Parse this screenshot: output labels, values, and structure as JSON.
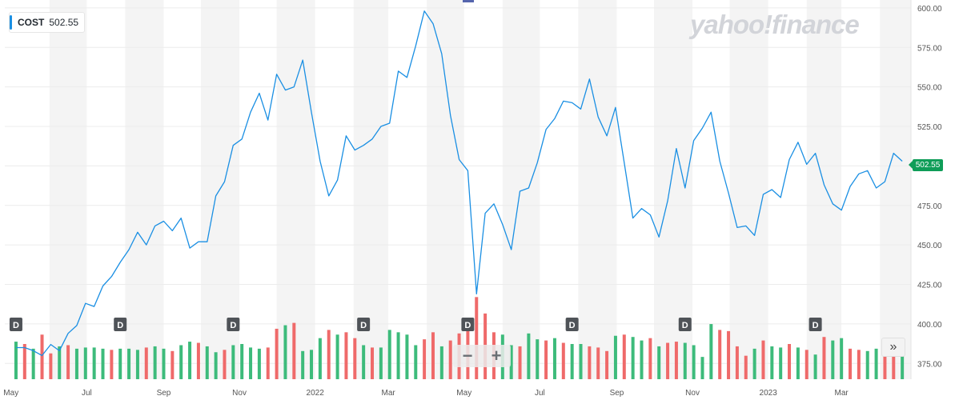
{
  "legend": {
    "symbol": "COST",
    "value": "502.55"
  },
  "brand": "yahoo!finance",
  "current_price": "502.55",
  "zoom": {
    "minus": "−",
    "plus": "+"
  },
  "nav_label": "»",
  "dividend_marker": "D",
  "colors": {
    "line": "#1a8fe3",
    "up": "#3dbb7b",
    "down": "#ef6a6a",
    "current_tag": "#0f9d58",
    "band": "#f4f4f4"
  },
  "chart_data": {
    "type": "line",
    "title": "",
    "xlabel": "",
    "ylabel": "",
    "ylim": [
      365,
      605
    ],
    "y_ticks": [
      375,
      400,
      425,
      450,
      475,
      500,
      525,
      550,
      575,
      600
    ],
    "y_tick_labels": [
      "375.00",
      "400.00",
      "425.00",
      "450.00",
      "475.00",
      "500.00",
      "525.00",
      "550.00",
      "575.00",
      "600.00"
    ],
    "x_tick_labels": [
      "May",
      "Jul",
      "Sep",
      "Nov",
      "2022",
      "Mar",
      "May",
      "Jul",
      "Sep",
      "Nov",
      "2023",
      "Mar"
    ],
    "grid": true,
    "series": [
      {
        "name": "COST",
        "x": [
          "2021-05-03",
          "2021-05-10",
          "2021-05-17",
          "2021-05-24",
          "2021-05-31",
          "2021-06-07",
          "2021-06-14",
          "2021-06-21",
          "2021-06-28",
          "2021-07-05",
          "2021-07-12",
          "2021-07-19",
          "2021-07-26",
          "2021-08-02",
          "2021-08-09",
          "2021-08-16",
          "2021-08-23",
          "2021-08-30",
          "2021-09-06",
          "2021-09-13",
          "2021-09-20",
          "2021-09-27",
          "2021-10-04",
          "2021-10-11",
          "2021-10-18",
          "2021-10-25",
          "2021-11-01",
          "2021-11-08",
          "2021-11-15",
          "2021-11-22",
          "2021-11-29",
          "2021-12-06",
          "2021-12-13",
          "2021-12-20",
          "2021-12-27",
          "2022-01-03",
          "2022-01-10",
          "2022-01-17",
          "2022-01-24",
          "2022-01-31",
          "2022-02-07",
          "2022-02-14",
          "2022-02-21",
          "2022-02-28",
          "2022-03-07",
          "2022-03-14",
          "2022-03-21",
          "2022-03-28",
          "2022-04-04",
          "2022-04-11",
          "2022-04-18",
          "2022-04-25",
          "2022-05-02",
          "2022-05-09",
          "2022-05-16",
          "2022-05-23",
          "2022-05-30",
          "2022-06-06",
          "2022-06-13",
          "2022-06-20",
          "2022-06-27",
          "2022-07-04",
          "2022-07-11",
          "2022-07-18",
          "2022-07-25",
          "2022-08-01",
          "2022-08-08",
          "2022-08-15",
          "2022-08-22",
          "2022-08-29",
          "2022-09-05",
          "2022-09-12",
          "2022-09-19",
          "2022-09-26",
          "2022-10-03",
          "2022-10-10",
          "2022-10-17",
          "2022-10-24",
          "2022-10-31",
          "2022-11-07",
          "2022-11-14",
          "2022-11-21",
          "2022-11-28",
          "2022-12-05",
          "2022-12-12",
          "2022-12-19",
          "2022-12-26",
          "2023-01-02",
          "2023-01-09",
          "2023-01-16",
          "2023-01-23",
          "2023-01-30",
          "2023-02-06",
          "2023-02-13",
          "2023-02-20",
          "2023-02-27",
          "2023-03-06",
          "2023-03-13",
          "2023-03-20",
          "2023-03-27",
          "2023-04-03",
          "2023-04-10",
          "2023-04-17"
        ],
        "values": [
          385,
          385,
          383,
          380,
          387,
          383,
          394,
          399,
          413,
          411,
          424,
          430,
          439,
          447,
          458,
          450,
          462,
          465,
          459,
          467,
          448,
          452,
          452,
          481,
          490,
          513,
          517,
          534,
          546,
          529,
          558,
          548,
          550,
          567,
          534,
          503,
          481,
          491,
          519,
          510,
          513,
          517,
          525,
          527,
          560,
          556,
          576,
          598,
          590,
          571,
          532,
          504,
          497,
          419,
          470,
          476,
          463,
          447,
          484,
          486,
          502,
          523,
          530,
          541,
          540,
          536,
          555,
          531,
          519,
          537,
          502,
          467,
          473,
          469,
          455,
          478,
          511,
          486,
          516,
          524,
          534,
          503,
          483,
          461,
          462,
          456,
          482,
          485,
          480,
          504,
          515,
          501,
          508,
          488,
          476,
          472,
          487,
          495,
          497,
          486,
          490,
          508,
          503
        ]
      }
    ],
    "volume": {
      "up": [
        1,
        0,
        1,
        0,
        0,
        1,
        0,
        1,
        1,
        1,
        1,
        0,
        1,
        1,
        1,
        0,
        1,
        1,
        0,
        1,
        1,
        0,
        1,
        1,
        0,
        1,
        1,
        1,
        1,
        0,
        0,
        1,
        0,
        1,
        1,
        1,
        0,
        1,
        0,
        0,
        1,
        0,
        1,
        1,
        1,
        1,
        1,
        0,
        0,
        1,
        0,
        0,
        0,
        0,
        0,
        0,
        1,
        1,
        0,
        1,
        1,
        0,
        1,
        0,
        1,
        1,
        0,
        0,
        0,
        1,
        0,
        1,
        1,
        0,
        1,
        0,
        0,
        1,
        1,
        1,
        1,
        0,
        0,
        0,
        0,
        1,
        0,
        1,
        1,
        0,
        1,
        0,
        1,
        0,
        1,
        1,
        0,
        0,
        1,
        1,
        0,
        0,
        1
      ],
      "values": [
        32,
        30,
        26,
        38,
        22,
        28,
        29,
        26,
        27,
        27,
        26,
        25,
        26,
        26,
        25,
        27,
        28,
        26,
        24,
        29,
        32,
        31,
        28,
        23,
        25,
        29,
        30,
        27,
        26,
        27,
        43,
        46,
        48,
        24,
        25,
        35,
        42,
        38,
        40,
        35,
        29,
        27,
        27,
        42,
        40,
        38,
        29,
        34,
        40,
        28,
        33,
        39,
        42,
        70,
        56,
        40,
        38,
        29,
        28,
        39,
        34,
        33,
        35,
        31,
        30,
        30,
        28,
        27,
        24,
        37,
        38,
        36,
        33,
        35,
        28,
        31,
        32,
        31,
        29,
        19,
        47,
        42,
        41,
        28,
        20,
        26,
        33,
        28,
        27,
        30,
        27,
        25,
        21,
        36,
        33,
        35,
        26,
        25,
        24,
        26,
        26,
        24,
        24
      ]
    },
    "dividends": [
      "2021-05-03",
      "2021-07-26",
      "2021-10-25",
      "2022-02-07",
      "2022-05-02",
      "2022-07-25",
      "2022-10-24",
      "2023-02-06"
    ]
  }
}
